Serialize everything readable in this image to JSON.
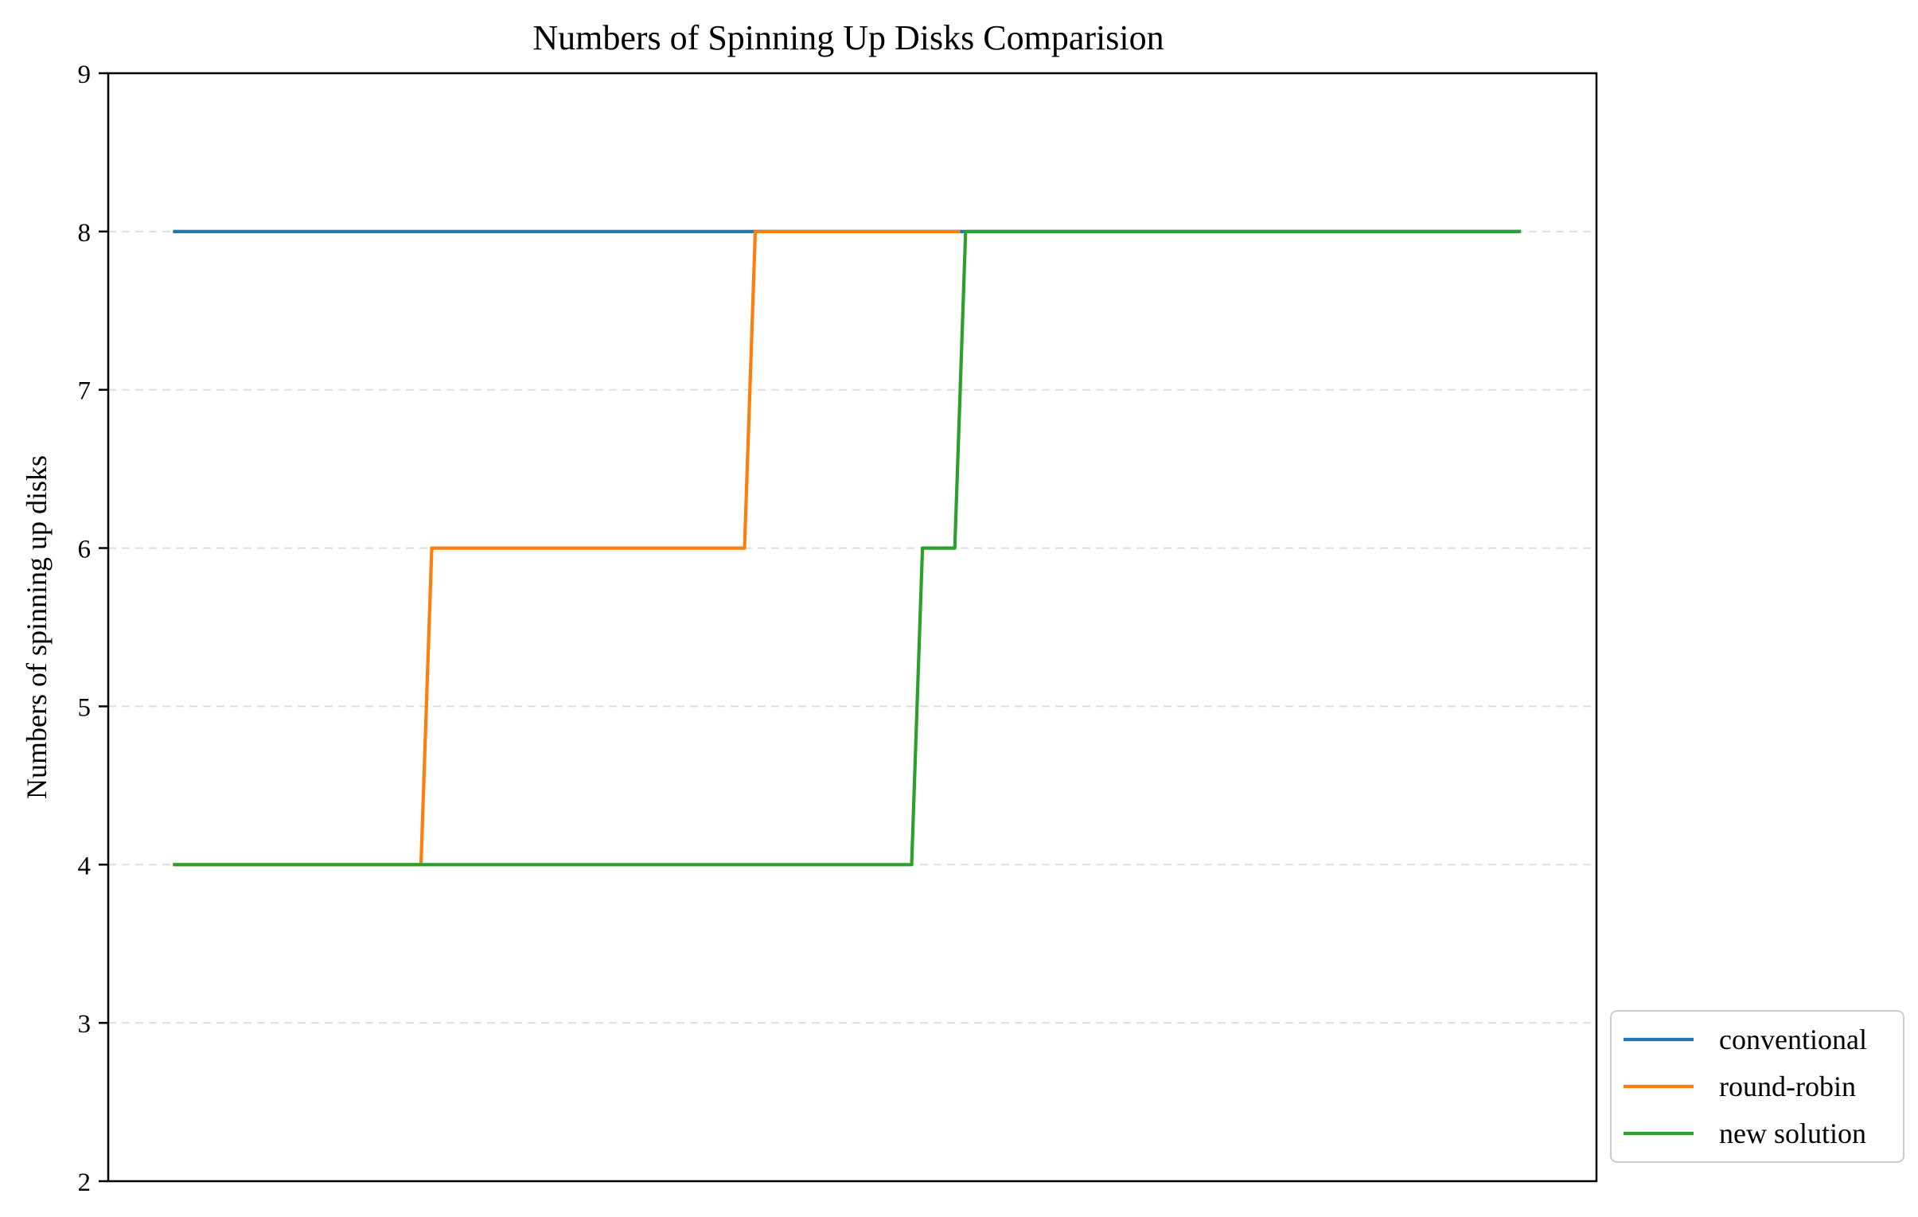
{
  "chart_data": {
    "type": "line",
    "title": "Numbers of Spinning Up Disks Comparision",
    "xlabel": "",
    "ylabel": "Numbers of spinning up disks",
    "ylim": [
      2,
      9
    ],
    "yticks": [
      "2",
      "3",
      "4",
      "5",
      "6",
      "7",
      "8",
      "9"
    ],
    "xlim": [
      -6,
      132
    ],
    "grid": "horizontal dashed",
    "legend_position": "outside-lower-right",
    "series": [
      {
        "name": "conventional",
        "color": "#1f77b4",
        "x": [
          0,
          125
        ],
        "y": [
          8,
          8
        ]
      },
      {
        "name": "round-robin",
        "color": "#ff7f0e",
        "x": [
          0,
          23,
          24,
          53,
          54,
          73
        ],
        "y": [
          4,
          4,
          6,
          6,
          8,
          8
        ]
      },
      {
        "name": "new solution",
        "color": "#2ca02c",
        "x": [
          0,
          68.5,
          69.5,
          72.5,
          73.5,
          125
        ],
        "y": [
          4,
          4,
          6,
          6,
          8,
          8
        ]
      }
    ]
  }
}
